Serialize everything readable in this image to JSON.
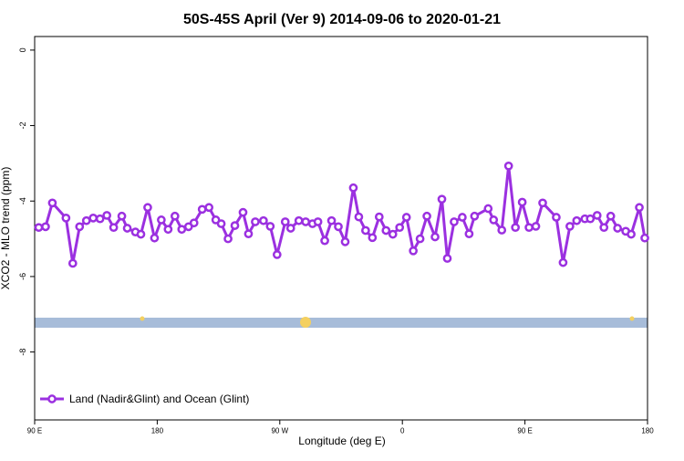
{
  "chart_data": {
    "type": "line",
    "title": "50S-45S April (Ver 9)   2014-09-06 to 2020-01-21",
    "x_label": "Longitude (deg E)",
    "y_label": "XCO2 - MLO trend (ppm)",
    "xlim": [
      90,
      540
    ],
    "ylim": [
      -9.8,
      0.36
    ],
    "xticks": [
      {
        "value": 90,
        "label": "90 E"
      },
      180,
      {
        "value": 270,
        "label": "90 W"
      },
      {
        "value": 360,
        "label": "0"
      },
      {
        "value": 450,
        "label": "90 E"
      },
      {
        "value": 540,
        "label": "180"
      }
    ],
    "yticks": [
      0,
      -2,
      -4,
      -6,
      -8
    ],
    "legend": "bottom-left",
    "series": [
      {
        "name": "Land (Nadir&Glint) and Ocean (Glint)",
        "color": "#9b30e0",
        "x": [
          93,
          98,
          103,
          113,
          118,
          123,
          128,
          133,
          138,
          143,
          148,
          154,
          158,
          164,
          168,
          173,
          178,
          183,
          188,
          193,
          198,
          203,
          207,
          213,
          218,
          223,
          227,
          232,
          237,
          243,
          247,
          252,
          258,
          263,
          268,
          274,
          278,
          284,
          289,
          294,
          298,
          303,
          308,
          313,
          318,
          324,
          328,
          333,
          338,
          343,
          348,
          353,
          358,
          363,
          368,
          373,
          378,
          384,
          389,
          393,
          398,
          404,
          409,
          413,
          423,
          427,
          433,
          438,
          443,
          448,
          453,
          458,
          463,
          473,
          478,
          483,
          488,
          494,
          498,
          503,
          508,
          513,
          518,
          524,
          528,
          534,
          538
        ],
        "values": [
          -4.7,
          -4.68,
          -4.05,
          -4.45,
          -5.65,
          -4.68,
          -4.52,
          -4.45,
          -4.47,
          -4.38,
          -4.7,
          -4.4,
          -4.72,
          -4.82,
          -4.88,
          -4.17,
          -4.98,
          -4.5,
          -4.75,
          -4.4,
          -4.75,
          -4.68,
          -4.58,
          -4.22,
          -4.17,
          -4.5,
          -4.6,
          -5.0,
          -4.65,
          -4.3,
          -4.87,
          -4.55,
          -4.52,
          -4.67,
          -5.42,
          -4.55,
          -4.72,
          -4.52,
          -4.55,
          -4.6,
          -4.55,
          -5.05,
          -4.52,
          -4.68,
          -5.08,
          -3.65,
          -4.42,
          -4.78,
          -4.97,
          -4.42,
          -4.78,
          -4.88,
          -4.7,
          -4.43,
          -5.32,
          -5.0,
          -4.4,
          -4.95,
          -3.95,
          -5.52,
          -4.55,
          -4.43,
          -4.87,
          -4.4,
          -4.2,
          -4.5,
          -4.77,
          -3.07,
          -4.7,
          -4.03,
          -4.7,
          -4.67,
          -4.05,
          -4.43,
          -5.63,
          -4.67,
          -4.52,
          -4.47,
          -4.47,
          -4.38,
          -4.7,
          -4.4,
          -4.72,
          -4.8,
          -4.88,
          -4.17,
          -4.98
        ]
      }
    ]
  }
}
